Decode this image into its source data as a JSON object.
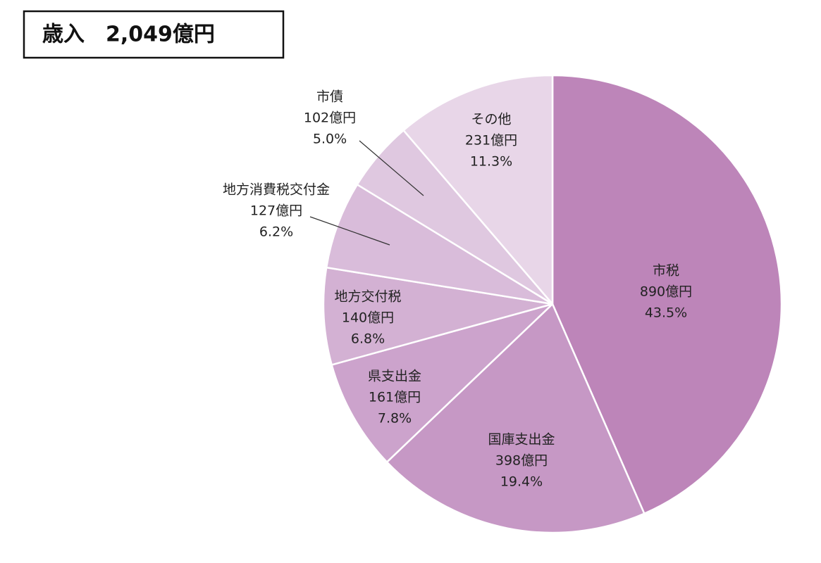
{
  "chart_data": {
    "type": "pie",
    "title": "歳入　2,049億円",
    "categories": [
      "市税",
      "国庫支出金",
      "県支出金",
      "地方交付税",
      "地方消費税交付金",
      "市債",
      "その他"
    ],
    "values": [
      890,
      398,
      161,
      140,
      127,
      102,
      231
    ],
    "value_labels": [
      "890億円",
      "398億円",
      "161億円",
      "140億円",
      "127億円",
      "102億円",
      "231億円"
    ],
    "percents": [
      43.5,
      19.4,
      7.8,
      6.8,
      6.2,
      5.0,
      11.3
    ],
    "percent_labels": [
      "43.5%",
      "19.4%",
      "7.8%",
      "6.8%",
      "6.2%",
      "5.0%",
      "11.3%"
    ],
    "colors": [
      "#bd85b9",
      "#c698c5",
      "#cca3cc",
      "#d3b1d3",
      "#d9bcda",
      "#dfc8e0",
      "#e8d6e8"
    ]
  }
}
